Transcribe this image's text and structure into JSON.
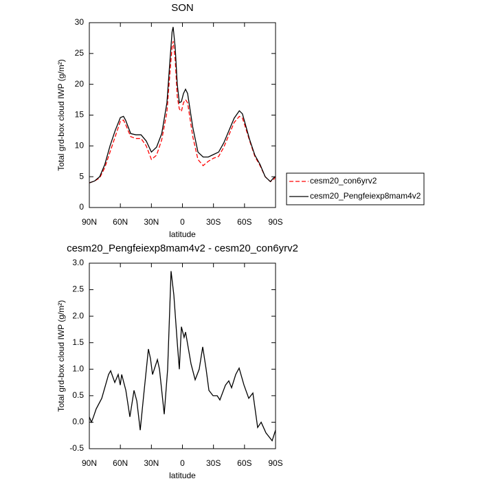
{
  "chart_data": [
    {
      "type": "line",
      "title": "SON",
      "xlabel": "latitude",
      "ylabel": "Total grd-box cloud IWP (g/m²)",
      "x": [
        90,
        85,
        80,
        75,
        70,
        65,
        60,
        57,
        55,
        50,
        45,
        40,
        35,
        30,
        25,
        20,
        15,
        12,
        10,
        9,
        7,
        5,
        3,
        1,
        -1,
        -3,
        -5,
        -10,
        -15,
        -20,
        -25,
        -30,
        -35,
        -40,
        -45,
        -50,
        -55,
        -58,
        -60,
        -65,
        -70,
        -75,
        -80,
        -85,
        -88,
        -90
      ],
      "series": [
        {
          "name": "cesm20_con6yrv2",
          "color": "#ff0000",
          "dash": true,
          "values": [
            4.0,
            4.3,
            4.8,
            6.5,
            9.0,
            11.5,
            14.0,
            14.2,
            13.5,
            11.5,
            11.2,
            11.2,
            10.0,
            7.8,
            8.5,
            11,
            15.5,
            22,
            26,
            27,
            24,
            18,
            16,
            15.6,
            17,
            17.5,
            17,
            11.5,
            7.8,
            6.8,
            7.5,
            8.0,
            8.3,
            9.8,
            11.8,
            13.8,
            14.8,
            14.5,
            13.5,
            10.8,
            8.3,
            6.8,
            5.0,
            4.2,
            4.5,
            5.0
          ]
        },
        {
          "name": "cesm20_Pengfeiexp8mam4v2",
          "color": "#000000",
          "dash": false,
          "values": [
            4.0,
            4.3,
            5.0,
            7.0,
            10.0,
            12.5,
            14.6,
            14.8,
            14.2,
            12.0,
            11.8,
            11.8,
            10.8,
            9.0,
            9.8,
            12.0,
            17.0,
            24,
            28.5,
            29.3,
            26,
            20,
            17.0,
            17.2,
            18.5,
            19.2,
            18.5,
            13,
            9.0,
            8.2,
            8.2,
            8.6,
            9.0,
            10.5,
            12.5,
            14.5,
            15.7,
            15.2,
            14.0,
            11.0,
            8.5,
            7.0,
            5.0,
            4.2,
            4.8,
            5.0
          ]
        }
      ],
      "xlim": [
        90,
        -90
      ],
      "xticks": [
        {
          "value": 90,
          "label": "90N"
        },
        {
          "value": 60,
          "label": "60N"
        },
        {
          "value": 30,
          "label": "30N"
        },
        0,
        {
          "value": -30,
          "label": "30S"
        },
        {
          "value": -60,
          "label": "60S"
        },
        {
          "value": -90,
          "label": "90S"
        }
      ],
      "ylim": [
        0,
        30
      ],
      "yticks": [
        0,
        5,
        10,
        15,
        20,
        25,
        30
      ],
      "legend": "right"
    },
    {
      "type": "line",
      "title": "cesm20_Pengfeiexp8mam4v2 - cesm20_con6yrv2",
      "xlabel": "latitude",
      "ylabel": "Total grd-box cloud IWP (g/m²)",
      "x": [
        90,
        88,
        86,
        83.4,
        78,
        71.4,
        69.4,
        65.4,
        62.1,
        60.1,
        58.7,
        54.7,
        50.8,
        46.8,
        44.1,
        40.8,
        37.5,
        32.9,
        30.9,
        28.9,
        24.2,
        22.2,
        17.6,
        14.3,
        11,
        8.3,
        5,
        3,
        1,
        -1.6,
        -3,
        -8.3,
        -12.3,
        -16.2,
        -19.6,
        -22.9,
        -25.6,
        -29.6,
        -33.6,
        -36.2,
        -41.6,
        -44.8,
        -47.5,
        -51.5,
        -54.8,
        -59.5,
        -64.1,
        -68.1,
        -72.7,
        -76.1,
        -80.7,
        -86.7,
        -90
      ],
      "series": [
        {
          "color": "#000000",
          "dash": false,
          "values": [
            0.1,
            0.0,
            0.1,
            0.25,
            0.45,
            0.9,
            0.97,
            0.75,
            0.9,
            0.7,
            0.9,
            0.6,
            0.1,
            0.6,
            0.4,
            -0.15,
            0.5,
            1.38,
            1.2,
            0.9,
            1.18,
            1.0,
            0.15,
            1.0,
            2.85,
            2.4,
            1.5,
            1.0,
            1.8,
            1.6,
            1.7,
            1.1,
            0.8,
            1.0,
            1.42,
            1.0,
            0.6,
            0.5,
            0.5,
            0.42,
            0.7,
            0.78,
            0.65,
            0.9,
            1.02,
            0.7,
            0.45,
            0.55,
            -0.1,
            0.0,
            -0.2,
            -0.35,
            -0.15
          ]
        }
      ],
      "xlim": [
        90,
        -90
      ],
      "xticks": [
        {
          "value": 90,
          "label": "90N"
        },
        {
          "value": 60,
          "label": "60N"
        },
        {
          "value": 30,
          "label": "30N"
        },
        0,
        {
          "value": -30,
          "label": "30S"
        },
        {
          "value": -60,
          "label": "60S"
        },
        {
          "value": -90,
          "label": "90S"
        }
      ],
      "ylim": [
        -0.5,
        3.0
      ],
      "yticks": [
        -0.5,
        {
          "value": 0,
          "label": "0.0"
        },
        0.5,
        {
          "value": 1,
          "label": "1.0"
        },
        1.5,
        {
          "value": 2,
          "label": "2.0"
        },
        2.5,
        {
          "value": 3,
          "label": "3.0"
        }
      ]
    }
  ]
}
